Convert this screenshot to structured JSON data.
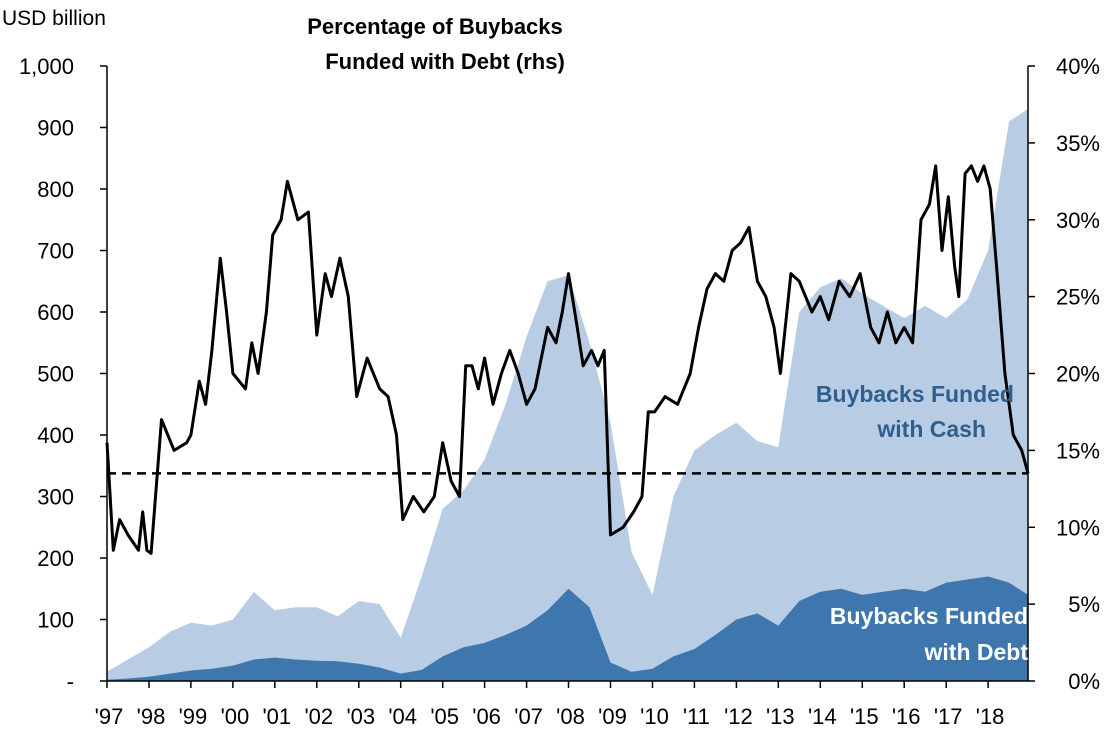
{
  "chart_data": {
    "type": "area",
    "title": "Percentage of Buybacks Funded with Debt (rhs)",
    "title_lines": [
      "Percentage of Buybacks",
      "Funded with Debt (rhs)"
    ],
    "ylabel_left": "USD billion",
    "y_left_lim": [
      0,
      1000
    ],
    "y_left_ticks": [
      "-",
      "100",
      "200",
      "300",
      "400",
      "500",
      "600",
      "700",
      "800",
      "900",
      "1,000"
    ],
    "y_left_tick_values": [
      0,
      100,
      200,
      300,
      400,
      500,
      600,
      700,
      800,
      900,
      1000
    ],
    "y_right_lim": [
      0,
      40
    ],
    "y_right_ticks": [
      "0%",
      "5%",
      "10%",
      "15%",
      "20%",
      "25%",
      "30%",
      "35%",
      "40%"
    ],
    "y_right_tick_values": [
      0,
      5,
      10,
      15,
      20,
      25,
      30,
      35,
      40
    ],
    "x_lim": [
      1997.0,
      2018.95
    ],
    "x_ticks": [
      "'97",
      "'98",
      "'99",
      "'00",
      "'01",
      "'02",
      "'03",
      "'04",
      "'05",
      "'06",
      "'07",
      "'08",
      "'09",
      "'10",
      "'11",
      "'12",
      "'13",
      "'14",
      "'15",
      "'16",
      "'17",
      "'18"
    ],
    "x_tick_values": [
      1997,
      1998,
      1999,
      2000,
      2001,
      2002,
      2003,
      2004,
      2005,
      2006,
      2007,
      2008,
      2009,
      2010,
      2011,
      2012,
      2013,
      2014,
      2015,
      2016,
      2017,
      2018
    ],
    "grid": false,
    "legend": "none",
    "annotations": [
      {
        "text_lines": [
          "Buybacks Funded",
          "with Cash"
        ],
        "color": "#2f5f8f"
      },
      {
        "text_lines": [
          "Buybacks Funded",
          "with Debt"
        ],
        "color": "#ffffff"
      }
    ],
    "colors": {
      "total": "#b8cce4",
      "debt": "#3d77ae",
      "pct_line": "#000000",
      "reference": "#000000"
    },
    "series": [
      {
        "kind": "area",
        "axis": "left",
        "x": [
          1997.0,
          1997.5,
          1998.0,
          1998.5,
          1999.0,
          1999.5,
          2000.0,
          2000.5,
          2001.0,
          2001.5,
          2002.0,
          2002.5,
          2003.0,
          2003.5,
          2004.0,
          2004.5,
          2005.0,
          2005.5,
          2006.0,
          2006.5,
          2007.0,
          2007.5,
          2008.0,
          2008.5,
          2009.0,
          2009.5,
          2010.0,
          2010.5,
          2011.0,
          2011.5,
          2012.0,
          2012.5,
          2013.0,
          2013.5,
          2014.0,
          2014.5,
          2015.0,
          2015.5,
          2016.0,
          2016.5,
          2017.0,
          2017.5,
          2018.0,
          2018.5,
          2018.95
        ],
        "values": [
          15,
          35,
          55,
          80,
          95,
          90,
          100,
          145,
          115,
          120,
          120,
          105,
          130,
          125,
          70,
          170,
          280,
          310,
          360,
          450,
          560,
          650,
          660,
          550,
          420,
          210,
          140,
          300,
          375,
          400,
          420,
          390,
          380,
          600,
          640,
          655,
          630,
          610,
          590,
          610,
          590,
          620,
          700,
          910,
          930
        ]
      },
      {
        "kind": "area",
        "axis": "left",
        "x": [
          1997.0,
          1997.5,
          1998.0,
          1998.5,
          1999.0,
          1999.5,
          2000.0,
          2000.5,
          2001.0,
          2001.5,
          2002.0,
          2002.5,
          2003.0,
          2003.5,
          2004.0,
          2004.5,
          2005.0,
          2005.5,
          2006.0,
          2006.5,
          2007.0,
          2007.5,
          2008.0,
          2008.5,
          2009.0,
          2009.5,
          2010.0,
          2010.5,
          2011.0,
          2011.5,
          2012.0,
          2012.5,
          2013.0,
          2013.5,
          2014.0,
          2014.5,
          2015.0,
          2015.5,
          2016.0,
          2016.5,
          2017.0,
          2017.5,
          2018.0,
          2018.5,
          2018.95
        ],
        "values": [
          2,
          4,
          7,
          12,
          17,
          20,
          25,
          35,
          38,
          35,
          33,
          32,
          28,
          22,
          12,
          18,
          40,
          55,
          62,
          75,
          90,
          115,
          150,
          120,
          30,
          15,
          20,
          40,
          52,
          75,
          100,
          110,
          90,
          130,
          145,
          150,
          140,
          145,
          150,
          145,
          160,
          165,
          170,
          160,
          140
        ]
      },
      {
        "kind": "line",
        "axis": "right",
        "x": [
          1997.0,
          1997.15,
          1997.3,
          1997.5,
          1997.75,
          1997.85,
          1997.95,
          1998.05,
          1998.3,
          1998.6,
          1998.9,
          1999.0,
          1999.2,
          1999.35,
          1999.5,
          1999.7,
          1999.85,
          2000.0,
          2000.3,
          2000.45,
          2000.6,
          2000.8,
          2000.95,
          2001.15,
          2001.3,
          2001.55,
          2001.8,
          2002.0,
          2002.2,
          2002.35,
          2002.55,
          2002.75,
          2002.95,
          2003.2,
          2003.5,
          2003.7,
          2003.9,
          2004.05,
          2004.3,
          2004.55,
          2004.8,
          2005.0,
          2005.2,
          2005.4,
          2005.55,
          2005.7,
          2005.85,
          2006.0,
          2006.2,
          2006.4,
          2006.6,
          2006.8,
          2007.0,
          2007.2,
          2007.35,
          2007.5,
          2007.7,
          2007.85,
          2008.0,
          2008.15,
          2008.35,
          2008.55,
          2008.7,
          2008.85,
          2009.0,
          2009.3,
          2009.55,
          2009.75,
          2009.9,
          2010.05,
          2010.3,
          2010.6,
          2010.9,
          2011.1,
          2011.3,
          2011.5,
          2011.7,
          2011.9,
          2012.1,
          2012.3,
          2012.5,
          2012.7,
          2012.9,
          2013.05,
          2013.3,
          2013.5,
          2013.8,
          2014.0,
          2014.2,
          2014.45,
          2014.7,
          2014.95,
          2015.2,
          2015.4,
          2015.6,
          2015.8,
          2016.0,
          2016.2,
          2016.4,
          2016.6,
          2016.75,
          2016.9,
          2017.05,
          2017.2,
          2017.3,
          2017.45,
          2017.6,
          2017.75,
          2017.9,
          2018.05,
          2018.2,
          2018.4,
          2018.6,
          2018.8,
          2018.95
        ],
        "values": [
          15.5,
          8.5,
          10.5,
          9.5,
          8.5,
          11.0,
          8.5,
          8.3,
          17.0,
          15.0,
          15.5,
          16.0,
          19.5,
          18.0,
          21.5,
          27.5,
          24.0,
          20.0,
          19.0,
          22.0,
          20.0,
          24.0,
          29.0,
          30.0,
          32.5,
          30.0,
          30.5,
          22.5,
          26.5,
          25.0,
          27.5,
          25.0,
          18.5,
          21.0,
          19.0,
          18.5,
          16.0,
          10.5,
          12.0,
          11.0,
          12.0,
          15.5,
          13.0,
          12.0,
          20.5,
          20.5,
          19.0,
          21.0,
          18.0,
          20.0,
          21.5,
          20.0,
          18.0,
          19.0,
          21.0,
          23.0,
          22.0,
          24.0,
          26.5,
          24.0,
          20.5,
          21.5,
          20.5,
          21.5,
          9.5,
          10.0,
          11.0,
          12.0,
          17.5,
          17.5,
          18.5,
          18.0,
          20.0,
          23.0,
          25.5,
          26.5,
          26.0,
          28.0,
          28.5,
          29.5,
          26.0,
          25.0,
          23.0,
          20.0,
          26.5,
          26.0,
          24.0,
          25.0,
          23.5,
          26.0,
          25.0,
          26.5,
          23.0,
          22.0,
          24.0,
          22.0,
          23.0,
          22.0,
          30.0,
          31.0,
          33.5,
          28.0,
          31.5,
          27.0,
          25.0,
          33.0,
          33.5,
          32.5,
          33.5,
          32.0,
          27.0,
          20.0,
          16.0,
          15.0,
          13.5
        ]
      },
      {
        "kind": "reference-line",
        "axis": "right",
        "y": 13.5
      }
    ]
  }
}
